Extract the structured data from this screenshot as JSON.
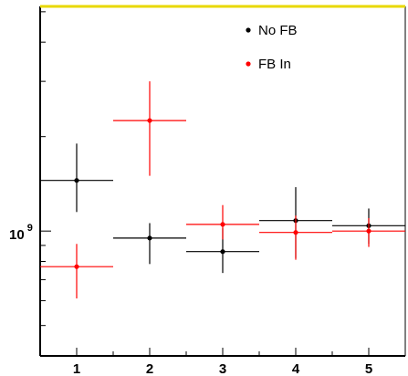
{
  "chart_data": {
    "type": "scatter",
    "title": "",
    "xlabel": "",
    "ylabel": "",
    "log_y": true,
    "xlim": [
      0.5,
      5.5
    ],
    "ylim": [
      400000000.0,
      5200000000.0
    ],
    "grid": false,
    "legend_position": "top-right",
    "x_ticks": [
      "1",
      "2",
      "3",
      "4",
      "5"
    ],
    "y_tick_label": {
      "base": "10",
      "exponent": "9"
    },
    "series": [
      {
        "name": "No FB",
        "color": "#000000",
        "points": [
          {
            "x": 1,
            "x_low": 0.5,
            "x_high": 1.5,
            "y": 1450000000.0,
            "y_low": 1150000000.0,
            "y_high": 1900000000.0
          },
          {
            "x": 2,
            "x_low": 1.5,
            "x_high": 2.5,
            "y": 950000000.0,
            "y_low": 785000000.0,
            "y_high": 1060000000.0
          },
          {
            "x": 3,
            "x_low": 2.5,
            "x_high": 3.5,
            "y": 860000000.0,
            "y_low": 735000000.0,
            "y_high": 1020000000.0
          },
          {
            "x": 4,
            "x_low": 3.5,
            "x_high": 4.5,
            "y": 1080000000.0,
            "y_low": 820000000.0,
            "y_high": 1380000000.0
          },
          {
            "x": 5,
            "x_low": 4.5,
            "x_high": 5.5,
            "y": 1040000000.0,
            "y_low": 910000000.0,
            "y_high": 1180000000.0
          }
        ]
      },
      {
        "name": "FB In",
        "color": "#ff0000",
        "points": [
          {
            "x": 1,
            "x_low": 0.5,
            "x_high": 1.5,
            "y": 770000000.0,
            "y_low": 610000000.0,
            "y_high": 910000000.0
          },
          {
            "x": 2,
            "x_low": 1.5,
            "x_high": 2.5,
            "y": 2250000000.0,
            "y_low": 1500000000.0,
            "y_high": 3000000000.0
          },
          {
            "x": 3,
            "x_low": 2.5,
            "x_high": 3.5,
            "y": 1050000000.0,
            "y_low": 940000000.0,
            "y_high": 1210000000.0
          },
          {
            "x": 4,
            "x_low": 3.5,
            "x_high": 4.5,
            "y": 990000000.0,
            "y_low": 810000000.0,
            "y_high": 1120000000.0
          },
          {
            "x": 5,
            "x_low": 4.5,
            "x_high": 5.5,
            "y": 1000000000.0,
            "y_low": 890000000.0,
            "y_high": 1100000000.0
          }
        ]
      }
    ],
    "frame_top_color": "#e8d800"
  }
}
